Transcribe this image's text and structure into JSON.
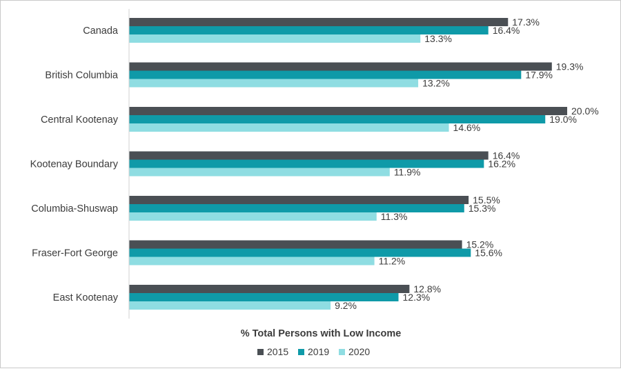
{
  "chart_data": {
    "type": "bar",
    "orientation": "horizontal",
    "categories": [
      "Canada",
      "British Columbia",
      "Central Kootenay",
      "Kootenay Boundary",
      "Columbia-Shuswap",
      "Fraser-Fort George",
      "East Kootenay"
    ],
    "series": [
      {
        "name": "2015",
        "color": "#4a4f54",
        "values": [
          17.3,
          19.3,
          20.0,
          16.4,
          15.5,
          15.2,
          12.8
        ],
        "labels": [
          "17.3%",
          "19.3%",
          "20.0%",
          "16.4%",
          "15.5%",
          "15.2%",
          "12.8%"
        ]
      },
      {
        "name": "2019",
        "color": "#0f9aa8",
        "values": [
          16.4,
          17.9,
          19.0,
          16.2,
          15.3,
          15.6,
          12.3
        ],
        "labels": [
          "16.4%",
          "17.9%",
          "19.0%",
          "16.2%",
          "15.3%",
          "15.6%",
          "12.3%"
        ]
      },
      {
        "name": "2020",
        "color": "#8fdde2",
        "values": [
          13.3,
          13.2,
          14.6,
          11.9,
          11.3,
          11.2,
          9.2
        ],
        "labels": [
          "13.3%",
          "13.2%",
          "14.6%",
          "11.9%",
          "11.3%",
          "11.2%",
          "9.2%"
        ]
      }
    ],
    "xlabel": "% Total Persons with Low Income",
    "xlim": [
      0,
      20.75
    ],
    "grid": false,
    "legend_position": "bottom"
  }
}
